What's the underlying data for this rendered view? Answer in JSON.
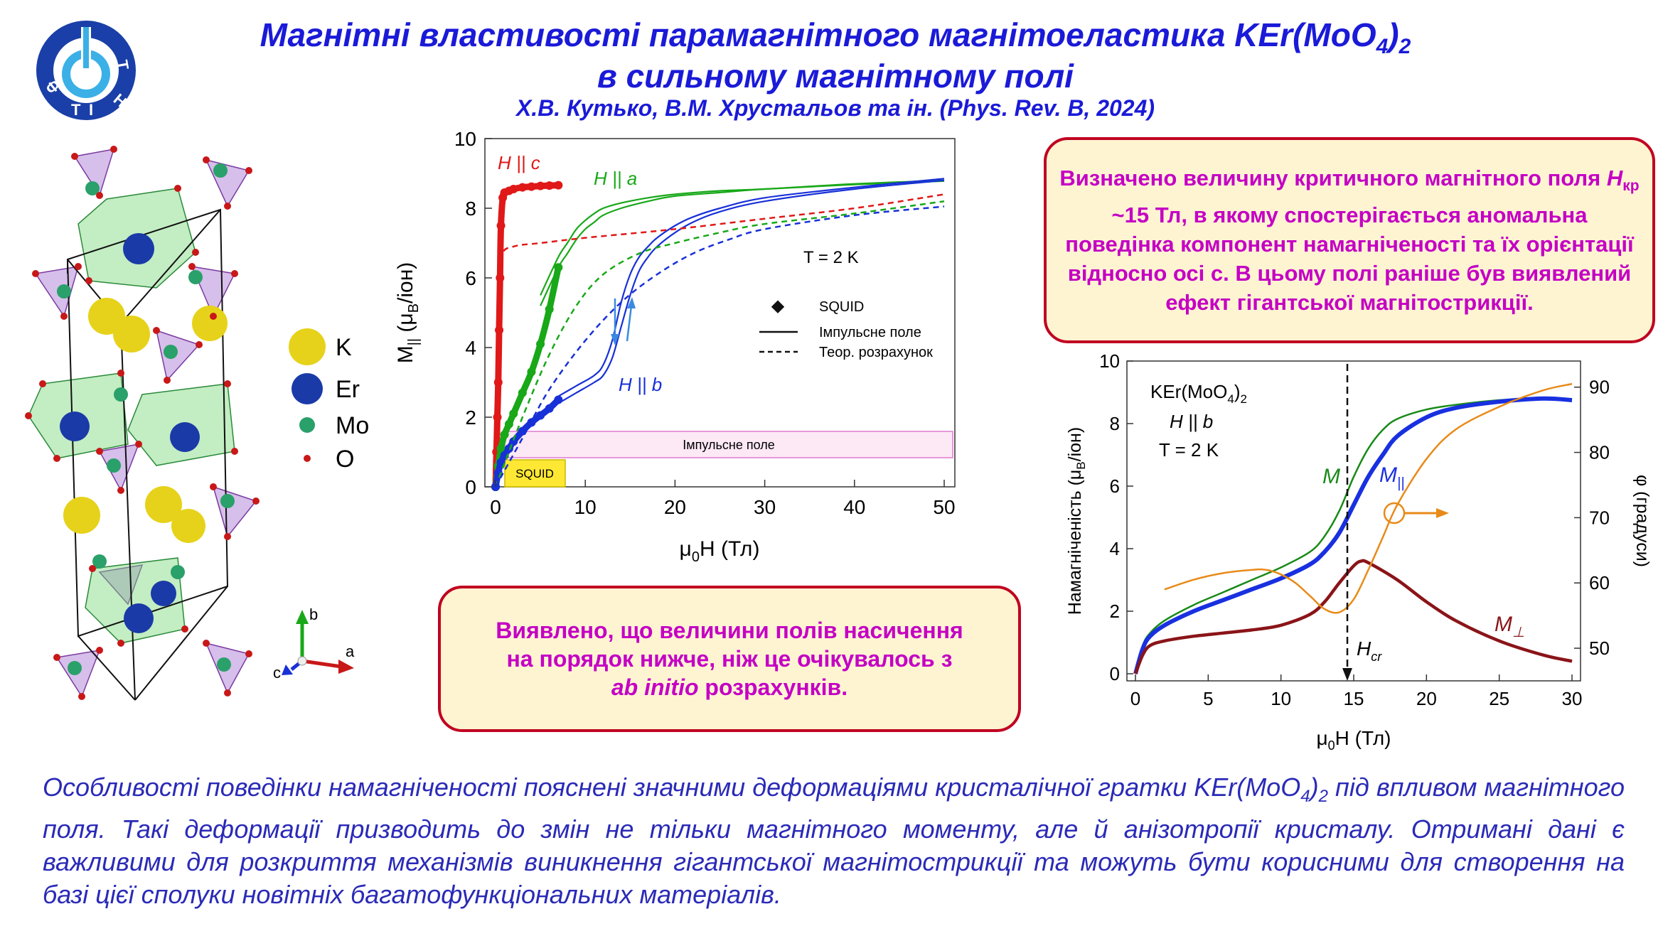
{
  "header": {
    "title_line1": "Магнітні властивості парамагнітного магнітоеластика KEr(MoO",
    "title_sub4": "4",
    "title_close": ")",
    "title_sub2": "2",
    "title_line2": "в сильному магнітному полі",
    "authors": "Х.В. Кутько, В.М. Хрустальов та ін. (Phys. Rev. B, 2024)",
    "logo_letters": [
      "Ф",
      "Т",
      "І",
      "Н",
      "Т"
    ]
  },
  "crystal_legend": {
    "items": [
      {
        "label": "K",
        "color": "#e6d21a"
      },
      {
        "label": "Er",
        "color": "#1a3aa8"
      },
      {
        "label": "Mo",
        "color": "#2aa06a"
      },
      {
        "label": "O",
        "color": "#c81818"
      }
    ],
    "axes": {
      "b": "b",
      "a": "a",
      "c": "c"
    }
  },
  "box1": {
    "part1": "Визначено величину критичного магнітного поля ",
    "h": "H",
    "h_sub": "кр",
    "part2": " ~15 Тл, в якому спостерігається аномальна поведінка компонент намагніченості та їх орієнтації відносно осі с. В цьому полі раніше був виявлений ефект гігантської магнітострикції."
  },
  "box2": {
    "line1": "Виявлено, що величини полів насичення",
    "line2": "на порядок нижче, ніж це очікувалось з",
    "italic": "ab initio",
    "line3_rest": " розрахунків."
  },
  "bottom_text": {
    "part1": "Особливості поведінки намагніченості пояснені значними деформаціями кристалічної гратки KEr(MoO",
    "sub4": "4",
    "close": ")",
    "sub2": "2",
    "part2": " під впливом магнітного поля. Такі деформації призводить до змін не тільки магнітного моменту, але й анізотропії кристалу. Отримані дані є важливими для розкриття механізмів виникнення гігантської магнітострикції та можуть бути корисними для створення на базі цієї сполуки новітніх багатофункціональних матеріалів."
  },
  "chart_data": [
    {
      "type": "line",
      "xlabel": "μ0H (Тл)",
      "ylabel": "M|| (μB/іон)",
      "xlim": [
        0,
        50
      ],
      "ylim": [
        0,
        10
      ],
      "xticks": [
        0,
        10,
        20,
        30,
        40,
        50
      ],
      "yticks": [
        0,
        2,
        4,
        6,
        8,
        10
      ],
      "annotations": [
        "H || c",
        "H || a",
        "H || b",
        "T = 2 K",
        "Імпульсне поле",
        "SQUID"
      ],
      "legend": {
        "placement": "center-right",
        "entries": [
          "SQUID",
          "Імпульсне поле",
          "Теор. розрахунок"
        ]
      },
      "colors": {
        "c": "#e01818",
        "a": "#18a818",
        "b": "#1830d8"
      },
      "series": [
        {
          "name": "H || c",
          "style": "squid",
          "x": [
            0,
            0.1,
            0.2,
            0.3,
            0.4,
            0.5,
            0.6,
            0.8,
            1,
            1.5,
            2,
            3,
            4,
            5,
            6,
            7
          ],
          "y": [
            0,
            1,
            2,
            3,
            4.5,
            6,
            7.5,
            8.3,
            8.45,
            8.5,
            8.55,
            8.6,
            8.62,
            8.64,
            8.65,
            8.66
          ]
        },
        {
          "name": "H || a",
          "style": "squid",
          "x": [
            0,
            0.3,
            0.6,
            1,
            1.5,
            2,
            3,
            4,
            5,
            6,
            7
          ],
          "y": [
            0,
            0.6,
            1.1,
            1.5,
            1.8,
            2.1,
            2.7,
            3.3,
            4.1,
            5.1,
            6.3
          ]
        },
        {
          "name": "H || b",
          "style": "squid",
          "x": [
            0,
            0.3,
            0.6,
            1,
            1.5,
            2,
            3,
            4,
            5,
            6,
            7
          ],
          "y": [
            0,
            0.4,
            0.7,
            0.9,
            1.1,
            1.3,
            1.6,
            1.85,
            2.05,
            2.25,
            2.5
          ]
        },
        {
          "name": "H || a",
          "style": "pulse",
          "x": [
            5,
            7,
            8,
            9,
            10,
            11,
            12,
            14,
            17,
            20,
            25,
            30,
            40,
            50
          ],
          "y": [
            5.5,
            6.6,
            7.0,
            7.4,
            7.65,
            7.85,
            8.0,
            8.15,
            8.3,
            8.4,
            8.5,
            8.55,
            8.7,
            8.8
          ]
        },
        {
          "name": "H || a",
          "style": "pulse",
          "x": [
            5,
            7,
            8,
            9,
            10,
            11,
            12,
            14,
            17,
            20,
            25,
            30,
            40,
            50
          ],
          "y": [
            5.2,
            6.3,
            6.7,
            7.1,
            7.4,
            7.6,
            7.8,
            8.0,
            8.2,
            8.35,
            8.45,
            8.55,
            8.68,
            8.78
          ]
        },
        {
          "name": "H || b",
          "style": "pulse",
          "x": [
            7,
            9,
            11,
            12,
            13,
            14,
            15,
            16,
            17,
            18,
            20,
            22,
            25,
            30,
            40,
            50
          ],
          "y": [
            2.6,
            2.9,
            3.2,
            3.5,
            4.2,
            5.3,
            6.1,
            6.6,
            6.9,
            7.15,
            7.5,
            7.75,
            8.0,
            8.3,
            8.6,
            8.85
          ]
        },
        {
          "name": "H || b",
          "style": "pulse",
          "x": [
            7,
            9,
            11,
            12,
            13,
            14,
            15,
            16,
            17,
            18,
            20,
            22,
            25,
            30,
            40,
            50
          ],
          "y": [
            2.4,
            2.7,
            3.0,
            3.2,
            3.7,
            4.6,
            5.5,
            6.2,
            6.6,
            6.9,
            7.3,
            7.6,
            7.9,
            8.2,
            8.55,
            8.8
          ]
        },
        {
          "name": "H || c",
          "style": "theory",
          "x": [
            0.5,
            1,
            2,
            3,
            5,
            10,
            20,
            30,
            40,
            50
          ],
          "y": [
            6.5,
            6.8,
            6.9,
            6.95,
            7.0,
            7.15,
            7.4,
            7.7,
            8.0,
            8.4
          ]
        },
        {
          "name": "H || a",
          "style": "theory",
          "x": [
            0,
            3,
            6,
            9,
            12,
            16,
            20,
            25,
            30,
            40,
            50
          ],
          "y": [
            0,
            2.0,
            3.8,
            5.2,
            6.1,
            6.7,
            7.0,
            7.3,
            7.55,
            7.85,
            8.2
          ]
        },
        {
          "name": "H || b",
          "style": "theory",
          "x": [
            0,
            3,
            6,
            10,
            14,
            18,
            22,
            26,
            30,
            40,
            50
          ],
          "y": [
            0,
            1.4,
            2.8,
            4.2,
            5.3,
            6.1,
            6.7,
            7.1,
            7.4,
            7.8,
            8.05
          ]
        }
      ]
    },
    {
      "type": "line",
      "xlabel": "μ0H (Тл)",
      "ylabel": "Намагніченість (μB/іон)",
      "y2label": "φ (градуси)",
      "xlim": [
        0,
        30
      ],
      "ylim": [
        0,
        10
      ],
      "y2lim": [
        45,
        94
      ],
      "xticks": [
        0,
        5,
        10,
        15,
        20,
        25,
        30
      ],
      "yticks": [
        0,
        2,
        4,
        6,
        8,
        10
      ],
      "y2ticks": [
        50,
        60,
        70,
        80,
        90
      ],
      "annotations": [
        "KEr(MoO4)2",
        "H || b",
        "T = 2 K",
        "Hcr"
      ],
      "marker_x": 14.8,
      "series": [
        {
          "name": "M",
          "color": "#188a18",
          "x": [
            0,
            0.5,
            1,
            2,
            4,
            6,
            8,
            10,
            12,
            13,
            14,
            15,
            16,
            17,
            18,
            20,
            22,
            25,
            28,
            30
          ],
          "y": [
            0,
            0.9,
            1.3,
            1.7,
            2.2,
            2.6,
            3.0,
            3.4,
            3.9,
            4.4,
            5.2,
            6.3,
            7.2,
            7.8,
            8.15,
            8.45,
            8.6,
            8.75,
            8.8,
            8.75
          ]
        },
        {
          "name": "M||",
          "color": "#1830e0",
          "x": [
            0,
            0.5,
            1,
            2,
            4,
            6,
            8,
            10,
            12,
            13,
            14,
            15,
            16,
            17,
            18,
            20,
            22,
            25,
            28,
            30
          ],
          "y": [
            0,
            0.8,
            1.2,
            1.55,
            2.0,
            2.35,
            2.7,
            3.05,
            3.5,
            3.9,
            4.5,
            5.4,
            6.3,
            7.0,
            7.6,
            8.2,
            8.5,
            8.7,
            8.8,
            8.75
          ]
        },
        {
          "name": "M⊥",
          "color": "#8a1418",
          "x": [
            0,
            0.5,
            1,
            2,
            4,
            6,
            8,
            10,
            12,
            13,
            14,
            15,
            15.5,
            16,
            18,
            20,
            22,
            25,
            28,
            30
          ],
          "y": [
            0,
            0.6,
            0.9,
            1.05,
            1.2,
            1.3,
            1.4,
            1.55,
            1.9,
            2.3,
            2.9,
            3.45,
            3.6,
            3.55,
            3.0,
            2.3,
            1.7,
            1.05,
            0.6,
            0.4
          ]
        },
        {
          "name": "φ",
          "color": "#e88a18",
          "axis": "right",
          "x": [
            2,
            4,
            6,
            8,
            9,
            10,
            11,
            12,
            13,
            14,
            15,
            16,
            17,
            18,
            20,
            22,
            25,
            28,
            30
          ],
          "y": [
            59,
            60.5,
            61.5,
            62,
            62,
            61.3,
            60,
            58,
            56,
            55.5,
            57.5,
            62,
            67,
            72,
            79,
            83.5,
            87,
            89.5,
            90.5
          ]
        }
      ]
    }
  ]
}
